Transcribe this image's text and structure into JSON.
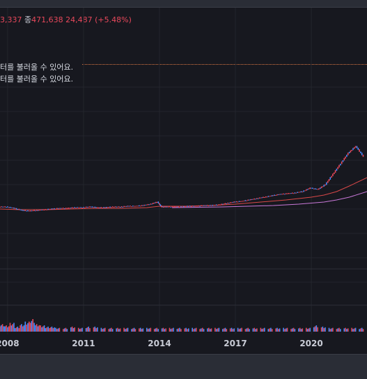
{
  "ohlc_readout": {
    "partial_value": "3,337",
    "close_label": "종",
    "close_value": "471,638",
    "change": "24,487 (+5.48%)"
  },
  "messages": [
    "터를 불러올 수 있어요.",
    "터를 불러올 수 있어요."
  ],
  "colors": {
    "up": "#e8485b",
    "down": "#4a8cff",
    "ma_short": "#d94848",
    "ma_long": "#c979d9",
    "accent_dotted": "#e07a45"
  },
  "chart_data": {
    "type": "candlestick",
    "x_tick_labels": [
      "2008",
      "2011",
      "2014",
      "2017",
      "2020"
    ],
    "x_ticks": [
      2008,
      2011,
      2014,
      2017,
      2020
    ],
    "xlim": [
      2007.7,
      2022.2
    ],
    "price_series": {
      "x": [
        2007.7,
        2008.0,
        2008.3,
        2008.6,
        2008.9,
        2009.2,
        2009.5,
        2009.8,
        2010.1,
        2010.4,
        2010.7,
        2011.0,
        2011.3,
        2011.6,
        2011.9,
        2012.2,
        2012.5,
        2012.8,
        2013.1,
        2013.4,
        2013.7,
        2013.95,
        2014.1,
        2014.3,
        2014.6,
        2014.9,
        2015.2,
        2015.5,
        2015.8,
        2016.1,
        2016.4,
        2016.7,
        2017.0,
        2017.3,
        2017.6,
        2017.9,
        2018.2,
        2018.5,
        2018.8,
        2019.1,
        2019.4,
        2019.7,
        2020.0,
        2020.3,
        2020.6,
        2020.9,
        2021.2,
        2021.5,
        2021.8,
        2022.1
      ],
      "values": [
        0.08,
        0.08,
        0.06,
        0.03,
        0.02,
        0.03,
        0.04,
        0.05,
        0.06,
        0.06,
        0.07,
        0.07,
        0.08,
        0.07,
        0.07,
        0.08,
        0.08,
        0.09,
        0.09,
        0.1,
        0.12,
        0.15,
        0.08,
        0.08,
        0.08,
        0.08,
        0.09,
        0.09,
        0.1,
        0.1,
        0.11,
        0.13,
        0.15,
        0.16,
        0.18,
        0.2,
        0.22,
        0.24,
        0.26,
        0.27,
        0.28,
        0.3,
        0.35,
        0.33,
        0.4,
        0.55,
        0.7,
        0.85,
        0.95,
        0.8
      ]
    },
    "ma_short": {
      "x": [
        2007.7,
        2008.5,
        2009.5,
        2010.5,
        2011.5,
        2012.5,
        2013.5,
        2014.0,
        2014.2,
        2015.0,
        2016.0,
        2017.0,
        2018.0,
        2019.0,
        2020.0,
        2020.5,
        2021.0,
        2021.5,
        2022.2
      ],
      "values": [
        0.05,
        0.04,
        0.04,
        0.05,
        0.06,
        0.06,
        0.07,
        0.09,
        0.09,
        0.09,
        0.1,
        0.12,
        0.15,
        0.18,
        0.22,
        0.25,
        0.3,
        0.38,
        0.5
      ]
    },
    "ma_long": {
      "x": [
        2014.5,
        2015.5,
        2016.5,
        2017.5,
        2018.5,
        2019.5,
        2020.5,
        2021.0,
        2021.5,
        2022.2
      ],
      "values": [
        0.07,
        0.075,
        0.08,
        0.09,
        0.1,
        0.12,
        0.15,
        0.18,
        0.22,
        0.3
      ]
    },
    "volume": {
      "x": [
        2007.7,
        2007.9,
        2008.1,
        2008.3,
        2008.5,
        2008.7,
        2008.9,
        2009.1,
        2009.3,
        2009.5,
        2009.7,
        2009.9,
        2010.2,
        2010.5,
        2010.8,
        2011.1,
        2011.4,
        2011.7,
        2012.0,
        2012.3,
        2012.6,
        2012.9,
        2013.2,
        2013.5,
        2013.8,
        2014.1,
        2014.4,
        2014.7,
        2015.0,
        2015.3,
        2015.6,
        2015.9,
        2016.2,
        2016.5,
        2016.8,
        2017.1,
        2017.4,
        2017.7,
        2018.0,
        2018.3,
        2018.6,
        2018.9,
        2019.2,
        2019.5,
        2019.8,
        2020.1,
        2020.4,
        2020.7,
        2021.0,
        2021.3,
        2021.6,
        2021.9
      ],
      "values": [
        0.6,
        0.5,
        0.7,
        0.4,
        0.6,
        0.8,
        1.0,
        0.6,
        0.5,
        0.4,
        0.4,
        0.3,
        0.3,
        0.4,
        0.3,
        0.4,
        0.4,
        0.3,
        0.3,
        0.3,
        0.3,
        0.3,
        0.3,
        0.3,
        0.3,
        0.3,
        0.3,
        0.3,
        0.3,
        0.3,
        0.3,
        0.3,
        0.3,
        0.3,
        0.3,
        0.3,
        0.3,
        0.3,
        0.3,
        0.3,
        0.3,
        0.3,
        0.3,
        0.3,
        0.3,
        0.5,
        0.4,
        0.3,
        0.3,
        0.3,
        0.3,
        0.3
      ]
    }
  }
}
